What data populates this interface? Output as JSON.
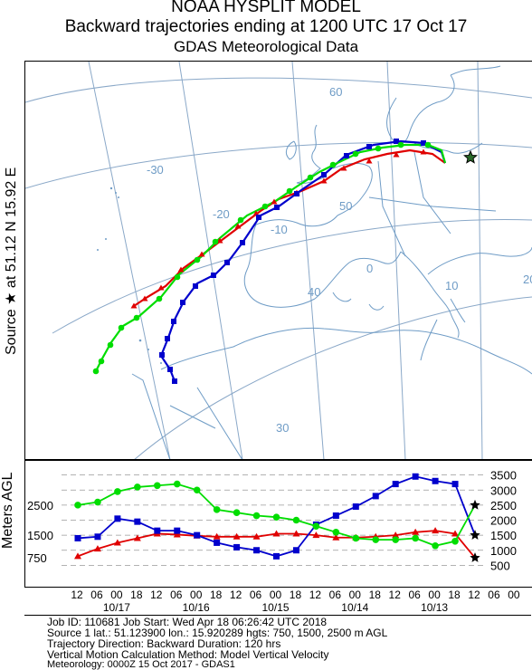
{
  "header": {
    "title_line1": "NOAA HYSPLIT MODEL",
    "title_line2": "Backward trajectories ending at 1200 UTC 17 Oct 17",
    "title_line3": "GDAS Meteorological Data"
  },
  "side_labels": {
    "source_label": "Source ★ at   51.12 N   15.92 E",
    "profile_axis_label": "Meters AGL"
  },
  "map": {
    "lat_labels": [
      "60",
      "50",
      "40",
      "30"
    ],
    "lon_labels": [
      "-30",
      "-20",
      "-10",
      "0",
      "10",
      "20"
    ]
  },
  "chart_data": {
    "type": "line",
    "title": "Backward trajectories ending at 1200 UTC 17 Oct 17",
    "ylabel": "Meters AGL",
    "source": {
      "lat": 51.12,
      "lon": 15.92,
      "symbol": "star"
    },
    "colors": {
      "red": "#e00000",
      "blue": "#0000cc",
      "green": "#00dd00"
    },
    "x_hours_back": [
      0,
      6,
      12,
      18,
      24,
      30,
      36,
      42,
      48,
      54,
      60,
      66,
      72,
      78,
      84,
      90,
      96,
      102,
      108,
      114,
      120
    ],
    "x_tick_labels": [
      "12",
      "06",
      "00",
      "18",
      "12",
      "06",
      "00",
      "18",
      "12",
      "06",
      "00",
      "18",
      "12",
      "06",
      "00",
      "18",
      "12",
      "06",
      "00",
      "18",
      "12",
      "06",
      "00"
    ],
    "date_labels": [
      "10/13",
      "10/14",
      "10/15",
      "10/16",
      "10/17"
    ],
    "y_ticks_left": [
      "2500",
      "1500",
      "750"
    ],
    "y_ticks_right": [
      "3500",
      "3000",
      "2500",
      "2000",
      "1500",
      "1000",
      "500"
    ],
    "series": [
      {
        "color": "red",
        "start_height": 750,
        "heights": [
          750,
          1550,
          1650,
          1600,
          1500,
          1450,
          1420,
          1420,
          1500,
          1550,
          1550,
          1450,
          1450,
          1450,
          1480,
          1520,
          1550,
          1400,
          1250,
          1050,
          800
        ]
      },
      {
        "color": "blue",
        "start_height": 1500,
        "heights": [
          1500,
          3200,
          3300,
          3450,
          3200,
          2800,
          2450,
          2150,
          1850,
          1000,
          800,
          1000,
          1100,
          1250,
          1500,
          1650,
          1650,
          1950,
          2050,
          1450,
          1400
        ]
      },
      {
        "color": "green",
        "start_height": 2500,
        "heights": [
          2500,
          1300,
          1150,
          1400,
          1350,
          1350,
          1400,
          1600,
          1800,
          2000,
          2100,
          2150,
          2250,
          2350,
          3000,
          3200,
          3150,
          3100,
          2950,
          2600,
          2500
        ]
      }
    ]
  },
  "info": {
    "line1": "Job ID: 110681                       Job Start: Wed Apr 18 06:26:42 UTC 2018",
    "line2": "Source 1 lat.: 51.123900  lon.: 15.920289  hgts: 750, 1500, 2500 m AGL",
    "line3": "Trajectory Direction: Backward      Duration: 120 hrs",
    "line4": "Vertical Motion Calculation Method:       Model Vertical Velocity",
    "line5": "Meteorology: 0000Z 15 Oct 2017 - GDAS1"
  }
}
